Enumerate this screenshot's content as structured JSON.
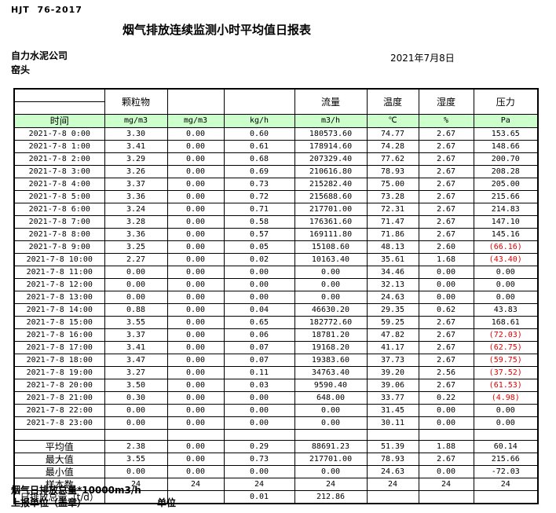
{
  "header": {
    "standard_code": "HJT  76-2017",
    "title": "烟气排放连续监测小时平均值日报表",
    "company": "自力水泥公司",
    "location": "窑头",
    "date": "2021年7月8日"
  },
  "colors": {
    "header_green": "#ccffcc",
    "alarm_red": "#e00000",
    "border": "#000000"
  },
  "table": {
    "time_label": "时间",
    "group_headers": {
      "particulate": "颗粒物",
      "flow": "流量",
      "temperature": "温度",
      "humidity": "湿度",
      "pressure": "压力"
    },
    "units": [
      "mg/m3",
      "mg/m3",
      "kg/h",
      "m3/h",
      "℃",
      "%",
      "Pa"
    ],
    "rows": [
      {
        "time": "2021-7-8 0:00",
        "values": [
          "3.30",
          "0.00",
          "0.60",
          "180573.60",
          "74.77",
          "2.67",
          "153.65"
        ]
      },
      {
        "time": "2021-7-8 1:00",
        "values": [
          "3.41",
          "0.00",
          "0.61",
          "178914.60",
          "74.28",
          "2.67",
          "148.66"
        ]
      },
      {
        "time": "2021-7-8 2:00",
        "values": [
          "3.29",
          "0.00",
          "0.68",
          "207329.40",
          "77.62",
          "2.67",
          "200.70"
        ]
      },
      {
        "time": "2021-7-8 3:00",
        "values": [
          "3.26",
          "0.00",
          "0.69",
          "210616.80",
          "78.93",
          "2.67",
          "208.28"
        ]
      },
      {
        "time": "2021-7-8 4:00",
        "values": [
          "3.37",
          "0.00",
          "0.73",
          "215282.40",
          "75.00",
          "2.67",
          "205.00"
        ]
      },
      {
        "time": "2021-7-8 5:00",
        "values": [
          "3.36",
          "0.00",
          "0.72",
          "215688.60",
          "73.28",
          "2.67",
          "215.66"
        ]
      },
      {
        "time": "2021-7-8 6:00",
        "values": [
          "3.24",
          "0.00",
          "0.71",
          "217701.00",
          "72.31",
          "2.67",
          "214.83"
        ]
      },
      {
        "time": "2021-7-8 7:00",
        "values": [
          "3.28",
          "0.00",
          "0.58",
          "176361.60",
          "71.47",
          "2.67",
          "147.10"
        ]
      },
      {
        "time": "2021-7-8 8:00",
        "values": [
          "3.36",
          "0.00",
          "0.57",
          "169111.80",
          "71.86",
          "2.67",
          "145.16"
        ]
      },
      {
        "time": "2021-7-8 9:00",
        "values": [
          "3.25",
          "0.00",
          "0.05",
          "15108.60",
          "48.13",
          "2.60",
          "(66.16)"
        ]
      },
      {
        "time": "2021-7-8 10:00",
        "values": [
          "2.27",
          "0.00",
          "0.02",
          "10163.40",
          "35.61",
          "1.68",
          "(43.40)"
        ]
      },
      {
        "time": "2021-7-8 11:00",
        "values": [
          "0.00",
          "0.00",
          "0.00",
          "0.00",
          "34.46",
          "0.00",
          "0.00"
        ]
      },
      {
        "time": "2021-7-8 12:00",
        "values": [
          "0.00",
          "0.00",
          "0.00",
          "0.00",
          "32.13",
          "0.00",
          "0.00"
        ]
      },
      {
        "time": "2021-7-8 13:00",
        "values": [
          "0.00",
          "0.00",
          "0.00",
          "0.00",
          "24.63",
          "0.00",
          "0.00"
        ]
      },
      {
        "time": "2021-7-8 14:00",
        "values": [
          "0.88",
          "0.00",
          "0.04",
          "46630.20",
          "29.35",
          "0.62",
          "43.83"
        ]
      },
      {
        "time": "2021-7-8 15:00",
        "values": [
          "3.55",
          "0.00",
          "0.65",
          "182772.60",
          "59.25",
          "2.67",
          "168.61"
        ]
      },
      {
        "time": "2021-7-8 16:00",
        "values": [
          "3.37",
          "0.00",
          "0.06",
          "18781.20",
          "47.82",
          "2.67",
          "(72.03)"
        ]
      },
      {
        "time": "2021-7-8 17:00",
        "values": [
          "3.41",
          "0.00",
          "0.07",
          "19168.20",
          "41.17",
          "2.67",
          "(62.75)"
        ]
      },
      {
        "time": "2021-7-8 18:00",
        "values": [
          "3.47",
          "0.00",
          "0.07",
          "19383.60",
          "37.73",
          "2.67",
          "(59.75)"
        ]
      },
      {
        "time": "2021-7-8 19:00",
        "values": [
          "3.27",
          "0.00",
          "0.11",
          "34763.40",
          "39.20",
          "2.56",
          "(37.52)"
        ]
      },
      {
        "time": "2021-7-8 20:00",
        "values": [
          "3.50",
          "0.00",
          "0.03",
          "9590.40",
          "39.06",
          "2.67",
          "(61.53)"
        ]
      },
      {
        "time": "2021-7-8 21:00",
        "values": [
          "0.30",
          "0.00",
          "0.00",
          "648.00",
          "33.77",
          "0.22",
          "(4.98)"
        ]
      },
      {
        "time": "2021-7-8 22:00",
        "values": [
          "0.00",
          "0.00",
          "0.00",
          "0.00",
          "31.45",
          "0.00",
          "0.00"
        ]
      },
      {
        "time": "2021-7-8 23:00",
        "values": [
          "0.00",
          "0.00",
          "0.00",
          "0.00",
          "30.11",
          "0.00",
          "0.00"
        ]
      }
    ],
    "summary": [
      {
        "key": "average",
        "label": "平均值",
        "values": [
          "2.38",
          "0.00",
          "0.29",
          "88691.23",
          "51.39",
          "1.88",
          "60.14"
        ]
      },
      {
        "key": "max",
        "label": "最大值",
        "values": [
          "3.55",
          "0.00",
          "0.73",
          "217701.00",
          "78.93",
          "2.67",
          "215.66"
        ]
      },
      {
        "key": "min",
        "label": "最小值",
        "values": [
          "0.00",
          "0.00",
          "0.00",
          "0.00",
          "24.63",
          "0.00",
          "-72.03"
        ]
      },
      {
        "key": "sample-count",
        "label": "样本数",
        "values": [
          "24",
          "24",
          "24",
          "24",
          "24",
          "24",
          "24"
        ]
      },
      {
        "key": "daily-total",
        "label": "日排放总量（t/d）",
        "align": "left",
        "values": [
          "",
          "",
          "0.01",
          "212.86",
          "",
          "",
          ""
        ]
      }
    ]
  },
  "footer": {
    "note": "烟气日排放总量*10000m3/h",
    "report_unit_label": "上报单位（盖章）",
    "unit_label": "单位"
  }
}
